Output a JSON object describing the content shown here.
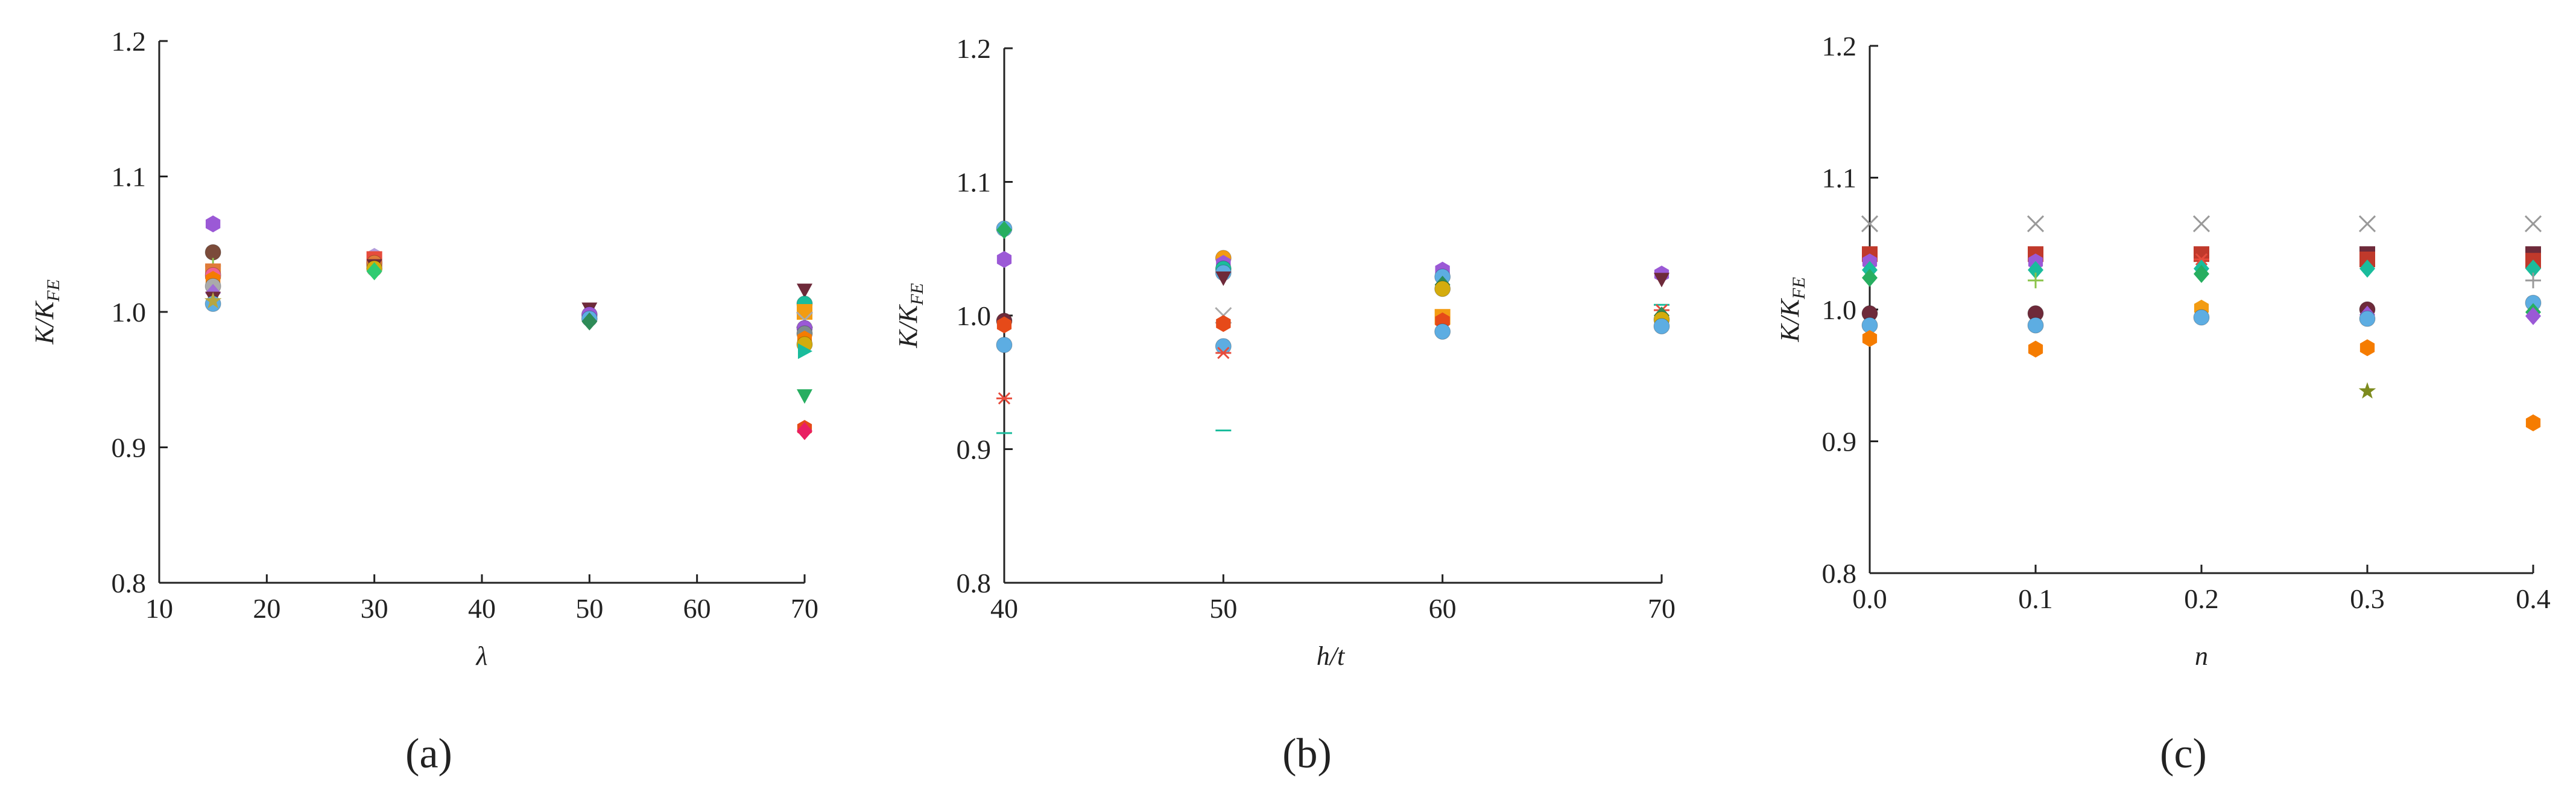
{
  "chart_data": [
    {
      "panel_label": "(a)",
      "type": "scatter",
      "xlabel": "λ",
      "ylabel": "K/K",
      "ylabel_sub": "FE",
      "x_ticks": [
        "10",
        "20",
        "30",
        "40",
        "50",
        "60",
        "70"
      ],
      "y_ticks": [
        "0.8",
        "0.9",
        "1.0",
        "1.1",
        "1.2"
      ],
      "xlim": [
        10,
        70
      ],
      "ylim": [
        0.8,
        1.2
      ],
      "points": [
        {
          "x": 15,
          "y": 1.065,
          "color": "#9b59d6",
          "shape": "hexagon"
        },
        {
          "x": 15,
          "y": 1.044,
          "color": "#7b4b3a",
          "shape": "circle"
        },
        {
          "x": 15,
          "y": 1.034,
          "color": "#8bc34a",
          "shape": "plus"
        },
        {
          "x": 15,
          "y": 1.03,
          "color": "#e07b39",
          "shape": "square"
        },
        {
          "x": 15,
          "y": 1.027,
          "color": "#f06292",
          "shape": "circle"
        },
        {
          "x": 15,
          "y": 1.024,
          "color": "#f57c00",
          "shape": "hexagon"
        },
        {
          "x": 15,
          "y": 1.019,
          "color": "#aaaaaa",
          "shape": "circle"
        },
        {
          "x": 15,
          "y": 1.014,
          "color": "#a06cd5",
          "shape": "diamond"
        },
        {
          "x": 15,
          "y": 1.01,
          "color": "#6e2a3a",
          "shape": "triangle-down"
        },
        {
          "x": 15,
          "y": 1.006,
          "color": "#5dade2",
          "shape": "circle"
        },
        {
          "x": 15,
          "y": 1.008,
          "color": "#b5a642",
          "shape": "star"
        },
        {
          "x": 30,
          "y": 1.041,
          "color": "#b39ddb",
          "shape": "hexagon"
        },
        {
          "x": 30,
          "y": 1.039,
          "color": "#e74c3c",
          "shape": "square"
        },
        {
          "x": 30,
          "y": 1.036,
          "color": "#e07b39",
          "shape": "circle"
        },
        {
          "x": 30,
          "y": 1.034,
          "color": "#6e2a3a",
          "shape": "triangle-down"
        },
        {
          "x": 30,
          "y": 1.032,
          "color": "#d4ac0d",
          "shape": "circle"
        },
        {
          "x": 30,
          "y": 1.03,
          "color": "#2ecc71",
          "shape": "diamond"
        },
        {
          "x": 50,
          "y": 1.002,
          "color": "#6e2a3a",
          "shape": "triangle-down"
        },
        {
          "x": 50,
          "y": 0.998,
          "color": "#9b59d6",
          "shape": "circle"
        },
        {
          "x": 50,
          "y": 0.995,
          "color": "#5dade2",
          "shape": "circle"
        },
        {
          "x": 50,
          "y": 0.993,
          "color": "#2e8b57",
          "shape": "diamond"
        },
        {
          "x": 70,
          "y": 1.016,
          "color": "#6e2a3a",
          "shape": "triangle-down"
        },
        {
          "x": 70,
          "y": 1.006,
          "color": "#1abc9c",
          "shape": "circle"
        },
        {
          "x": 70,
          "y": 1.0,
          "color": "#f39c12",
          "shape": "square"
        },
        {
          "x": 70,
          "y": 0.994,
          "color": "#aaaaaa",
          "shape": "cross"
        },
        {
          "x": 70,
          "y": 0.988,
          "color": "#9b59d6",
          "shape": "circle"
        },
        {
          "x": 70,
          "y": 0.984,
          "color": "#7f8c8d",
          "shape": "circle"
        },
        {
          "x": 70,
          "y": 0.98,
          "color": "#f57c00",
          "shape": "hexagon"
        },
        {
          "x": 70,
          "y": 0.976,
          "color": "#d4ac0d",
          "shape": "circle"
        },
        {
          "x": 70,
          "y": 0.971,
          "color": "#1abc9c",
          "shape": "triangle-right"
        },
        {
          "x": 70,
          "y": 0.938,
          "color": "#27ae60",
          "shape": "triangle-down"
        },
        {
          "x": 70,
          "y": 0.914,
          "color": "#e64a19",
          "shape": "hexagon"
        },
        {
          "x": 70,
          "y": 0.912,
          "color": "#e91e63",
          "shape": "diamond"
        }
      ]
    },
    {
      "panel_label": "(b)",
      "type": "scatter",
      "xlabel": "h/t",
      "ylabel": "K/K",
      "ylabel_sub": "FE",
      "x_ticks": [
        "40",
        "50",
        "60",
        "70"
      ],
      "y_ticks": [
        "0.8",
        "0.9",
        "1.0",
        "1.1",
        "1.2"
      ],
      "xlim": [
        40,
        70
      ],
      "ylim": [
        0.8,
        1.2
      ],
      "points": [
        {
          "x": 40,
          "y": 1.065,
          "color": "#5dade2",
          "shape": "circle"
        },
        {
          "x": 40,
          "y": 1.064,
          "color": "#27ae60",
          "shape": "diamond"
        },
        {
          "x": 40,
          "y": 1.042,
          "color": "#9b59d6",
          "shape": "hexagon"
        },
        {
          "x": 40,
          "y": 0.996,
          "color": "#6e2a3a",
          "shape": "circle"
        },
        {
          "x": 40,
          "y": 0.993,
          "color": "#e64a19",
          "shape": "hexagon"
        },
        {
          "x": 40,
          "y": 0.978,
          "color": "#5dade2",
          "shape": "circle"
        },
        {
          "x": 40,
          "y": 0.938,
          "color": "#e74c3c",
          "shape": "asterisk"
        },
        {
          "x": 40,
          "y": 0.912,
          "color": "#1abc9c",
          "shape": "dash"
        },
        {
          "x": 50,
          "y": 1.043,
          "color": "#f39c12",
          "shape": "circle"
        },
        {
          "x": 50,
          "y": 1.039,
          "color": "#9b59d6",
          "shape": "hexagon"
        },
        {
          "x": 50,
          "y": 1.035,
          "color": "#1abc9c",
          "shape": "circle"
        },
        {
          "x": 50,
          "y": 1.032,
          "color": "#5dade2",
          "shape": "circle"
        },
        {
          "x": 50,
          "y": 1.028,
          "color": "#6e2a3a",
          "shape": "triangle-down"
        },
        {
          "x": 50,
          "y": 1.0,
          "color": "#aaaaaa",
          "shape": "cross"
        },
        {
          "x": 50,
          "y": 0.994,
          "color": "#e64a19",
          "shape": "hexagon"
        },
        {
          "x": 50,
          "y": 0.977,
          "color": "#5dade2",
          "shape": "circle"
        },
        {
          "x": 50,
          "y": 0.972,
          "color": "#e74c3c",
          "shape": "asterisk"
        },
        {
          "x": 50,
          "y": 0.914,
          "color": "#1abc9c",
          "shape": "dash"
        },
        {
          "x": 60,
          "y": 1.034,
          "color": "#9b59d6",
          "shape": "hexagon"
        },
        {
          "x": 60,
          "y": 1.029,
          "color": "#5dade2",
          "shape": "circle"
        },
        {
          "x": 60,
          "y": 1.023,
          "color": "#2e8b57",
          "shape": "diamond"
        },
        {
          "x": 60,
          "y": 1.02,
          "color": "#d4ac0d",
          "shape": "circle"
        },
        {
          "x": 60,
          "y": 0.999,
          "color": "#f39c12",
          "shape": "square"
        },
        {
          "x": 60,
          "y": 0.996,
          "color": "#e64a19",
          "shape": "hexagon"
        },
        {
          "x": 60,
          "y": 0.988,
          "color": "#5dade2",
          "shape": "circle"
        },
        {
          "x": 70,
          "y": 1.031,
          "color": "#9b59d6",
          "shape": "hexagon"
        },
        {
          "x": 70,
          "y": 1.027,
          "color": "#6e2a3a",
          "shape": "triangle-down"
        },
        {
          "x": 70,
          "y": 1.008,
          "color": "#1abc9c",
          "shape": "dash"
        },
        {
          "x": 70,
          "y": 1.004,
          "color": "#e74c3c",
          "shape": "asterisk"
        },
        {
          "x": 70,
          "y": 1.0,
          "color": "#2e8b57",
          "shape": "diamond"
        },
        {
          "x": 70,
          "y": 0.997,
          "color": "#d4ac0d",
          "shape": "circle"
        },
        {
          "x": 70,
          "y": 0.992,
          "color": "#5dade2",
          "shape": "circle"
        }
      ]
    },
    {
      "panel_label": "(c)",
      "type": "scatter",
      "xlabel": "n",
      "ylabel": "K/K",
      "ylabel_sub": "FE",
      "x_ticks": [
        "0.0",
        "0.1",
        "0.2",
        "0.3",
        "0.4"
      ],
      "y_ticks": [
        "0.8",
        "0.9",
        "1.0",
        "1.1",
        "1.2"
      ],
      "xlim": [
        0.0,
        0.4
      ],
      "ylim": [
        0.8,
        1.2
      ],
      "points": [
        {
          "x": 0.0,
          "y": 1.065,
          "color": "#999999",
          "shape": "cross"
        },
        {
          "x": 0.0,
          "y": 1.042,
          "color": "#c0392b",
          "shape": "square"
        },
        {
          "x": 0.0,
          "y": 1.036,
          "color": "#9b59d6",
          "shape": "hexagon"
        },
        {
          "x": 0.0,
          "y": 1.03,
          "color": "#1abc9c",
          "shape": "diamond"
        },
        {
          "x": 0.0,
          "y": 1.024,
          "color": "#27ae60",
          "shape": "diamond"
        },
        {
          "x": 0.0,
          "y": 0.997,
          "color": "#6e2a3a",
          "shape": "circle"
        },
        {
          "x": 0.0,
          "y": 0.988,
          "color": "#5dade2",
          "shape": "circle"
        },
        {
          "x": 0.0,
          "y": 0.978,
          "color": "#f57c00",
          "shape": "hexagon"
        },
        {
          "x": 0.1,
          "y": 1.065,
          "color": "#999999",
          "shape": "cross"
        },
        {
          "x": 0.1,
          "y": 1.042,
          "color": "#c0392b",
          "shape": "square"
        },
        {
          "x": 0.1,
          "y": 1.036,
          "color": "#9b59d6",
          "shape": "hexagon"
        },
        {
          "x": 0.1,
          "y": 1.03,
          "color": "#1abc9c",
          "shape": "diamond"
        },
        {
          "x": 0.1,
          "y": 1.022,
          "color": "#8bc34a",
          "shape": "plus"
        },
        {
          "x": 0.1,
          "y": 0.997,
          "color": "#6e2a3a",
          "shape": "circle"
        },
        {
          "x": 0.1,
          "y": 0.988,
          "color": "#5dade2",
          "shape": "circle"
        },
        {
          "x": 0.1,
          "y": 0.97,
          "color": "#f57c00",
          "shape": "hexagon"
        },
        {
          "x": 0.2,
          "y": 1.065,
          "color": "#999999",
          "shape": "cross"
        },
        {
          "x": 0.2,
          "y": 1.042,
          "color": "#c0392b",
          "shape": "square"
        },
        {
          "x": 0.2,
          "y": 1.038,
          "color": "#e74c3c",
          "shape": "asterisk"
        },
        {
          "x": 0.2,
          "y": 1.031,
          "color": "#1abc9c",
          "shape": "diamond"
        },
        {
          "x": 0.2,
          "y": 1.027,
          "color": "#27ae60",
          "shape": "diamond"
        },
        {
          "x": 0.2,
          "y": 1.001,
          "color": "#f39c12",
          "shape": "hexagon"
        },
        {
          "x": 0.2,
          "y": 0.994,
          "color": "#5dade2",
          "shape": "circle"
        },
        {
          "x": 0.3,
          "y": 1.065,
          "color": "#999999",
          "shape": "cross"
        },
        {
          "x": 0.3,
          "y": 1.042,
          "color": "#6e2a3a",
          "shape": "square"
        },
        {
          "x": 0.3,
          "y": 1.038,
          "color": "#c0392b",
          "shape": "square"
        },
        {
          "x": 0.3,
          "y": 1.031,
          "color": "#1abc9c",
          "shape": "diamond"
        },
        {
          "x": 0.3,
          "y": 1.0,
          "color": "#6e2a3a",
          "shape": "circle"
        },
        {
          "x": 0.3,
          "y": 0.996,
          "color": "#9b59d6",
          "shape": "diamond"
        },
        {
          "x": 0.3,
          "y": 0.993,
          "color": "#5dade2",
          "shape": "circle"
        },
        {
          "x": 0.3,
          "y": 0.971,
          "color": "#f57c00",
          "shape": "hexagon"
        },
        {
          "x": 0.3,
          "y": 0.938,
          "color": "#7d8b1e",
          "shape": "star"
        },
        {
          "x": 0.4,
          "y": 1.065,
          "color": "#999999",
          "shape": "cross"
        },
        {
          "x": 0.4,
          "y": 1.042,
          "color": "#6e2a3a",
          "shape": "square"
        },
        {
          "x": 0.4,
          "y": 1.037,
          "color": "#c0392b",
          "shape": "square"
        },
        {
          "x": 0.4,
          "y": 1.031,
          "color": "#1abc9c",
          "shape": "diamond"
        },
        {
          "x": 0.4,
          "y": 1.022,
          "color": "#999999",
          "shape": "plus"
        },
        {
          "x": 0.4,
          "y": 1.005,
          "color": "#5dade2",
          "shape": "circle"
        },
        {
          "x": 0.4,
          "y": 0.998,
          "color": "#27ae60",
          "shape": "diamond"
        },
        {
          "x": 0.4,
          "y": 0.995,
          "color": "#9b59d6",
          "shape": "diamond"
        },
        {
          "x": 0.4,
          "y": 0.914,
          "color": "#f57c00",
          "shape": "hexagon"
        }
      ]
    }
  ]
}
